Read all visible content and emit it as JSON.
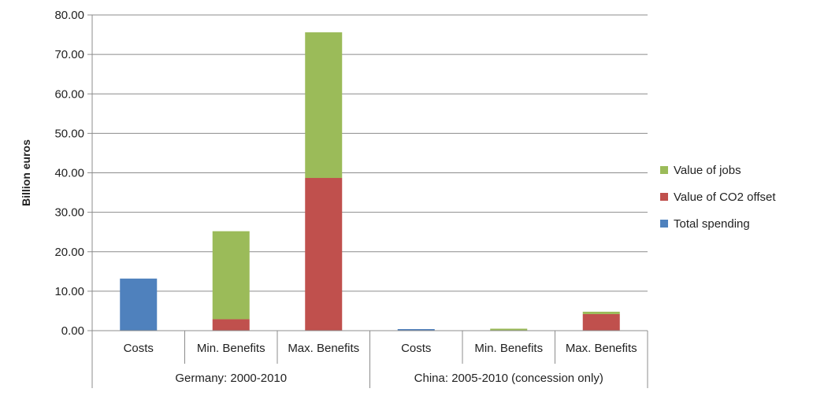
{
  "chart_data": {
    "type": "bar",
    "stacked": true,
    "ylabel": "Billion euros",
    "ylim": [
      0,
      80
    ],
    "yticks": [
      "0.00",
      "10.00",
      "20.00",
      "30.00",
      "40.00",
      "50.00",
      "60.00",
      "70.00",
      "80.00"
    ],
    "grid": "horizontal",
    "legend_position": "right",
    "groups": [
      {
        "label": "Germany: 2000-2010",
        "categories": [
          "Costs",
          "Min. Benefits",
          "Max. Benefits"
        ]
      },
      {
        "label": "China: 2005-2010 (concession only)",
        "categories": [
          "Costs",
          "Min. Benefits",
          "Max. Benefits"
        ]
      }
    ],
    "series": [
      {
        "name": "Total spending",
        "color": "#4f81bd",
        "values": [
          13.2,
          0,
          0,
          0.4,
          0,
          0
        ]
      },
      {
        "name": "Value of CO2 offset",
        "color": "#c0504d",
        "values": [
          0,
          2.9,
          38.7,
          0,
          0.1,
          4.2
        ]
      },
      {
        "name": "Value of jobs",
        "color": "#9bbb59",
        "values": [
          0,
          22.3,
          36.9,
          0,
          0.4,
          0.6
        ]
      }
    ],
    "legend_order": [
      "Value of jobs",
      "Value of CO2 offset",
      "Total spending"
    ]
  }
}
